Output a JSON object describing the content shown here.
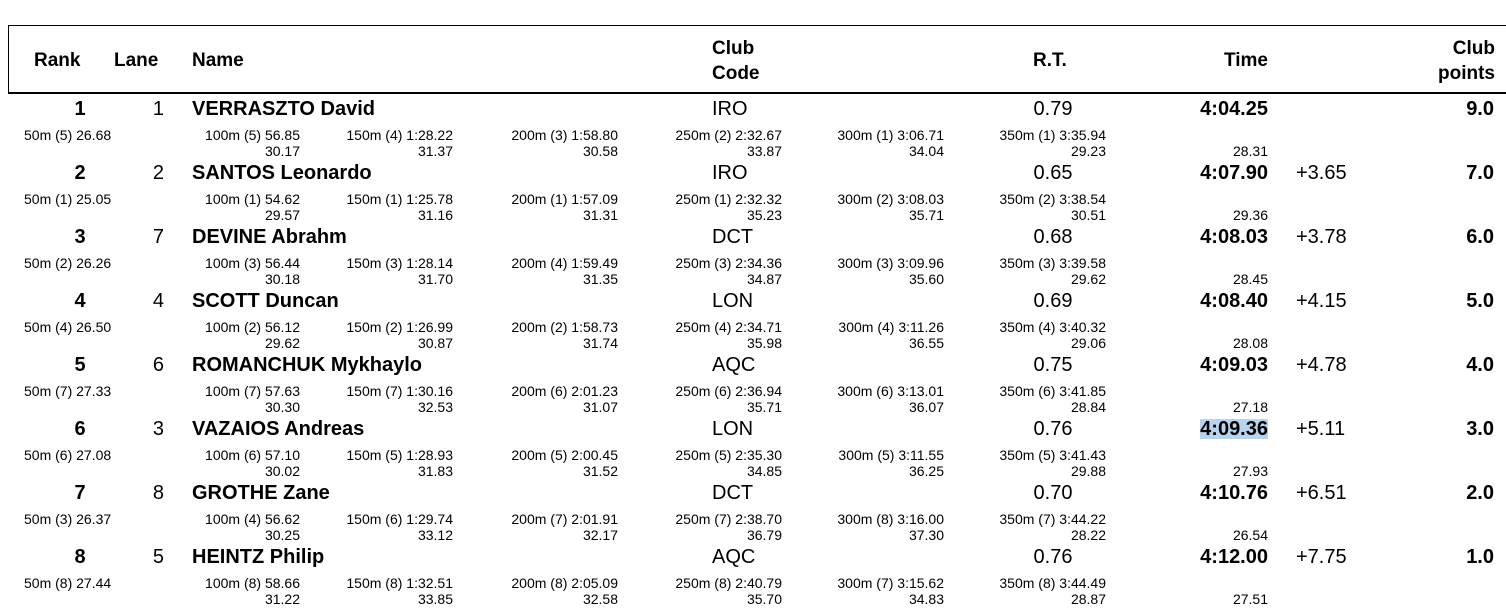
{
  "header": {
    "rank": "Rank",
    "lane": "Lane",
    "name": "Name",
    "club_code": [
      "Club",
      "Code"
    ],
    "rt": "R.T.",
    "time": "Time",
    "club_points": [
      "Club",
      "points"
    ]
  },
  "rows": [
    {
      "rank": "1",
      "lane": "1",
      "name": "VERRASZTO David",
      "club": "IRO",
      "rt": "0.79",
      "time": "4:04.25",
      "diff": null,
      "points": "9.0",
      "splits": [
        {
          "label": "50m (5) 26.68"
        },
        {
          "label": "100m (5) 56.85",
          "lap": "30.17"
        },
        {
          "label": "150m (4) 1:28.22",
          "lap": "31.37"
        },
        {
          "label": "200m (3) 1:58.80",
          "lap": "30.58"
        },
        {
          "label": "250m (2) 2:32.67",
          "lap": "33.87"
        },
        {
          "label": "300m (1) 3:06.71",
          "lap": "34.04"
        },
        {
          "label": "350m (1) 3:35.94",
          "lap": "29.23"
        }
      ],
      "final_lap": "28.31"
    },
    {
      "rank": "2",
      "lane": "2",
      "name": "SANTOS Leonardo",
      "club": "IRO",
      "rt": "0.65",
      "time": "4:07.90",
      "diff": "+3.65",
      "points": "7.0",
      "splits": [
        {
          "label": "50m (1) 25.05"
        },
        {
          "label": "100m (1) 54.62",
          "lap": "29.57"
        },
        {
          "label": "150m (1) 1:25.78",
          "lap": "31.16"
        },
        {
          "label": "200m (1) 1:57.09",
          "lap": "31.31"
        },
        {
          "label": "250m (1) 2:32.32",
          "lap": "35.23"
        },
        {
          "label": "300m (2) 3:08.03",
          "lap": "35.71"
        },
        {
          "label": "350m (2) 3:38.54",
          "lap": "30.51"
        }
      ],
      "final_lap": "29.36"
    },
    {
      "rank": "3",
      "lane": "7",
      "name": "DEVINE Abrahm",
      "club": "DCT",
      "rt": "0.68",
      "time": "4:08.03",
      "diff": "+3.78",
      "points": "6.0",
      "splits": [
        {
          "label": "50m (2) 26.26"
        },
        {
          "label": "100m (3) 56.44",
          "lap": "30.18"
        },
        {
          "label": "150m (3) 1:28.14",
          "lap": "31.70"
        },
        {
          "label": "200m (4) 1:59.49",
          "lap": "31.35"
        },
        {
          "label": "250m (3) 2:34.36",
          "lap": "34.87"
        },
        {
          "label": "300m (3) 3:09.96",
          "lap": "35.60"
        },
        {
          "label": "350m (3) 3:39.58",
          "lap": "29.62"
        }
      ],
      "final_lap": "28.45"
    },
    {
      "rank": "4",
      "lane": "4",
      "name": "SCOTT Duncan",
      "club": "LON",
      "rt": "0.69",
      "time": "4:08.40",
      "diff": "+4.15",
      "points": "5.0",
      "splits": [
        {
          "label": "50m (4) 26.50"
        },
        {
          "label": "100m (2) 56.12",
          "lap": "29.62"
        },
        {
          "label": "150m (2) 1:26.99",
          "lap": "30.87"
        },
        {
          "label": "200m (2) 1:58.73",
          "lap": "31.74"
        },
        {
          "label": "250m (4) 2:34.71",
          "lap": "35.98"
        },
        {
          "label": "300m (4) 3:11.26",
          "lap": "36.55"
        },
        {
          "label": "350m (4) 3:40.32",
          "lap": "29.06"
        }
      ],
      "final_lap": "28.08"
    },
    {
      "rank": "5",
      "lane": "6",
      "name": "ROMANCHUK Mykhaylo",
      "club": "AQC",
      "rt": "0.75",
      "time": "4:09.03",
      "diff": "+4.78",
      "points": "4.0",
      "splits": [
        {
          "label": "50m (7) 27.33"
        },
        {
          "label": "100m (7) 57.63",
          "lap": "30.30"
        },
        {
          "label": "150m (7) 1:30.16",
          "lap": "32.53"
        },
        {
          "label": "200m (6) 2:01.23",
          "lap": "31.07"
        },
        {
          "label": "250m (6) 2:36.94",
          "lap": "35.71"
        },
        {
          "label": "300m (6) 3:13.01",
          "lap": "36.07"
        },
        {
          "label": "350m (6) 3:41.85",
          "lap": "28.84"
        }
      ],
      "final_lap": "27.18"
    },
    {
      "rank": "6",
      "lane": "3",
      "name": "VAZAIOS Andreas",
      "club": "LON",
      "rt": "0.76",
      "time": "4:09.36",
      "diff": "+5.11",
      "points": "3.0",
      "splits": [
        {
          "label": "50m (6) 27.08"
        },
        {
          "label": "100m (6) 57.10",
          "lap": "30.02"
        },
        {
          "label": "150m (5) 1:28.93",
          "lap": "31.83"
        },
        {
          "label": "200m (5) 2:00.45",
          "lap": "31.52"
        },
        {
          "label": "250m (5) 2:35.30",
          "lap": "34.85"
        },
        {
          "label": "300m (5) 3:11.55",
          "lap": "36.25"
        },
        {
          "label": "350m (5) 3:41.43",
          "lap": "29.88"
        }
      ],
      "final_lap": "27.93"
    },
    {
      "rank": "7",
      "lane": "8",
      "name": "GROTHE Zane",
      "club": "DCT",
      "rt": "0.70",
      "time": "4:10.76",
      "diff": "+6.51",
      "points": "2.0",
      "splits": [
        {
          "label": "50m (3) 26.37"
        },
        {
          "label": "100m (4) 56.62",
          "lap": "30.25"
        },
        {
          "label": "150m (6) 1:29.74",
          "lap": "33.12"
        },
        {
          "label": "200m (7) 2:01.91",
          "lap": "32.17"
        },
        {
          "label": "250m (7) 2:38.70",
          "lap": "36.79"
        },
        {
          "label": "300m (8) 3:16.00",
          "lap": "37.30"
        },
        {
          "label": "350m (7) 3:44.22",
          "lap": "28.22"
        }
      ],
      "final_lap": "26.54"
    },
    {
      "rank": "8",
      "lane": "5",
      "name": "HEINTZ Philip",
      "club": "AQC",
      "rt": "0.76",
      "time": "4:12.00",
      "diff": "+7.75",
      "points": "1.0",
      "splits": [
        {
          "label": "50m (8) 27.44"
        },
        {
          "label": "100m (8) 58.66",
          "lap": "31.22"
        },
        {
          "label": "150m (8) 1:32.51",
          "lap": "33.85"
        },
        {
          "label": "200m (8) 2:05.09",
          "lap": "32.58"
        },
        {
          "label": "250m (8) 2:40.79",
          "lap": "35.70"
        },
        {
          "label": "300m (7) 3:15.62",
          "lap": "34.83"
        },
        {
          "label": "350m (8) 3:44.49",
          "lap": "28.87"
        }
      ],
      "final_lap": "27.51"
    }
  ]
}
